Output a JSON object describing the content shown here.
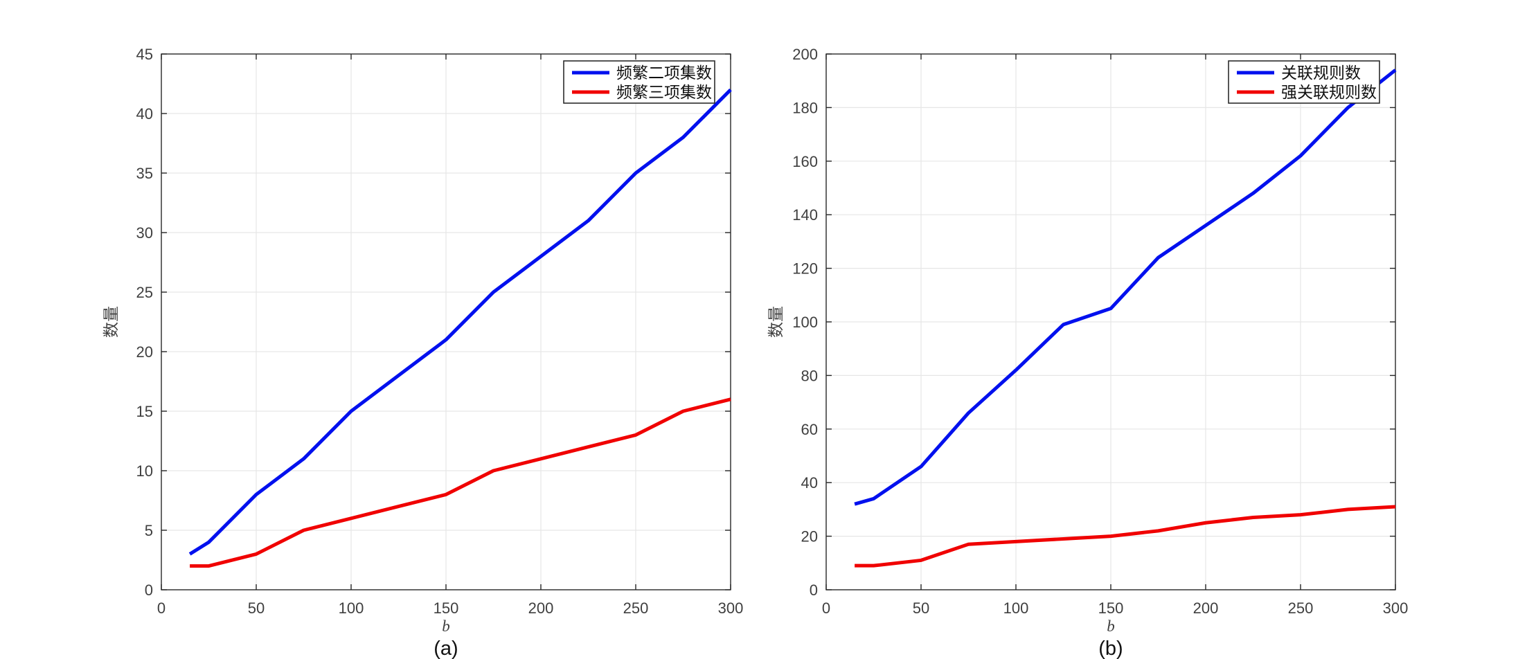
{
  "figure": {
    "background": "#ffffff",
    "axis_color": "#262626",
    "grid_color": "#e6e6e6",
    "tick_label_color": "#3f3f3f",
    "text_color": "#111111",
    "legend_border_color": "#2b2b2b",
    "legend_background": "#ffffff"
  },
  "chart_data": [
    {
      "id": "a",
      "type": "line",
      "panel_label": "(a)",
      "xlabel": "b",
      "ylabel": "数量",
      "xlim": [
        0,
        300
      ],
      "ylim": [
        0,
        45
      ],
      "x_ticks": [
        0,
        50,
        100,
        150,
        200,
        250,
        300
      ],
      "y_ticks": [
        0,
        5,
        10,
        15,
        20,
        25,
        30,
        35,
        40,
        45
      ],
      "grid": true,
      "legend_position": "northeast",
      "x": [
        15,
        25,
        50,
        75,
        100,
        125,
        150,
        175,
        200,
        225,
        250,
        275,
        300
      ],
      "series": [
        {
          "name": "频繁二项集数",
          "color": "#0010ee",
          "values": [
            3,
            4,
            8,
            11,
            15,
            18,
            21,
            25,
            28,
            31,
            35,
            38,
            42
          ]
        },
        {
          "name": "频繁三项集数",
          "color": "#f00000",
          "values": [
            2,
            2,
            3,
            5,
            6,
            7,
            8,
            10,
            11,
            12,
            13,
            15,
            16
          ]
        }
      ]
    },
    {
      "id": "b",
      "type": "line",
      "panel_label": "(b)",
      "xlabel": "b",
      "ylabel": "数量",
      "xlim": [
        0,
        300
      ],
      "ylim": [
        0,
        200
      ],
      "x_ticks": [
        0,
        50,
        100,
        150,
        200,
        250,
        300
      ],
      "y_ticks": [
        0,
        20,
        40,
        60,
        80,
        100,
        120,
        140,
        160,
        180,
        200
      ],
      "grid": true,
      "legend_position": "northeast",
      "x": [
        15,
        25,
        50,
        75,
        100,
        125,
        150,
        175,
        200,
        225,
        250,
        275,
        300
      ],
      "series": [
        {
          "name": "关联规则数",
          "color": "#0010ee",
          "values": [
            32,
            34,
            46,
            66,
            82,
            99,
            105,
            124,
            136,
            148,
            162,
            180,
            194
          ]
        },
        {
          "name": "强关联规则数",
          "color": "#f00000",
          "values": [
            9,
            9,
            11,
            17,
            18,
            19,
            20,
            22,
            25,
            27,
            28,
            30,
            31
          ]
        }
      ]
    }
  ]
}
